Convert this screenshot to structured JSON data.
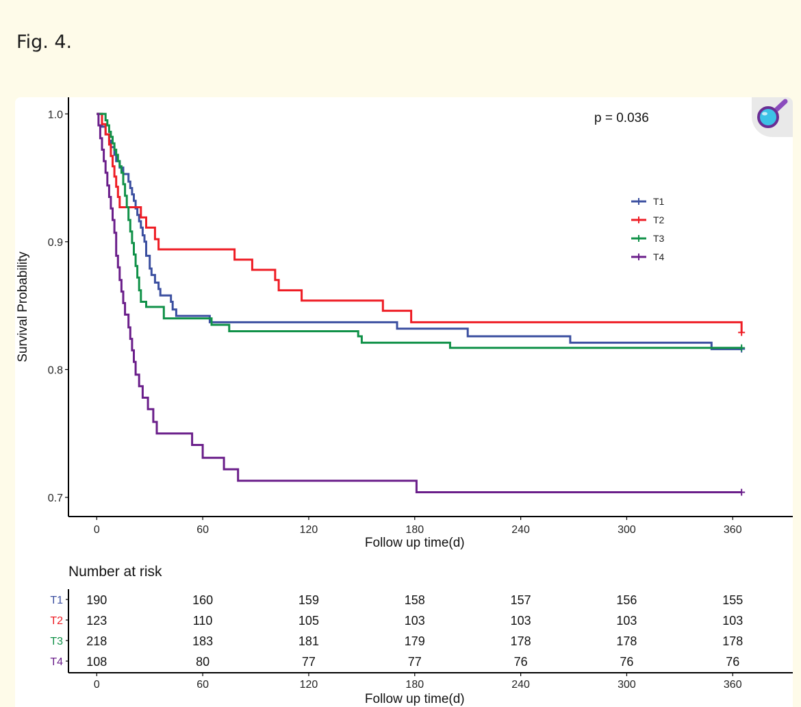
{
  "caption": "Fig. 4.",
  "icons": {
    "zoom": "magnifier-zoom-icon"
  },
  "colors": {
    "T1": "#3b4fa0",
    "T2": "#ee1c24",
    "T3": "#109148",
    "T4": "#6a1e8a"
  },
  "chart_data": {
    "type": "line",
    "subtype": "kaplan-meier step curves",
    "annotation": "p = 0.036",
    "xlabel": "Follow up time(d)",
    "ylabel": "Survival Probability",
    "xlim": [
      -16,
      394
    ],
    "ylim": [
      0.685,
      1.013
    ],
    "xticks": [
      0,
      60,
      120,
      180,
      240,
      300,
      360
    ],
    "yticks": [
      0.7,
      0.8,
      0.9,
      1.0
    ],
    "ytick_labels": [
      "0.7",
      "0.8",
      "0.9",
      "1.0"
    ],
    "grid": false,
    "legend_position": "right",
    "series": [
      {
        "name": "T1",
        "color": "#3b4fa0",
        "points": [
          [
            0,
            1.0
          ],
          [
            3,
            0.99
          ],
          [
            5,
            0.984
          ],
          [
            7,
            0.979
          ],
          [
            8,
            0.974
          ],
          [
            10,
            0.968
          ],
          [
            11,
            0.963
          ],
          [
            13,
            0.958
          ],
          [
            15,
            0.953
          ],
          [
            18,
            0.947
          ],
          [
            19,
            0.942
          ],
          [
            20,
            0.937
          ],
          [
            21,
            0.932
          ],
          [
            22,
            0.926
          ],
          [
            23,
            0.921
          ],
          [
            24,
            0.916
          ],
          [
            25,
            0.911
          ],
          [
            26,
            0.905
          ],
          [
            27,
            0.9
          ],
          [
            28,
            0.889
          ],
          [
            30,
            0.879
          ],
          [
            31,
            0.874
          ],
          [
            33,
            0.868
          ],
          [
            35,
            0.863
          ],
          [
            36,
            0.858
          ],
          [
            42,
            0.853
          ],
          [
            43,
            0.847
          ],
          [
            45,
            0.842
          ],
          [
            64,
            0.837
          ],
          [
            170,
            0.832
          ],
          [
            210,
            0.826
          ],
          [
            268,
            0.821
          ],
          [
            348,
            0.816
          ],
          [
            365,
            0.816
          ]
        ]
      },
      {
        "name": "T2",
        "color": "#ee1c24",
        "points": [
          [
            0,
            1.0
          ],
          [
            3,
            0.992
          ],
          [
            5,
            0.984
          ],
          [
            7,
            0.976
          ],
          [
            8,
            0.967
          ],
          [
            9,
            0.959
          ],
          [
            10,
            0.951
          ],
          [
            11,
            0.943
          ],
          [
            12,
            0.935
          ],
          [
            13,
            0.927
          ],
          [
            25,
            0.919
          ],
          [
            28,
            0.911
          ],
          [
            33,
            0.902
          ],
          [
            35,
            0.894
          ],
          [
            78,
            0.886
          ],
          [
            88,
            0.878
          ],
          [
            101,
            0.87
          ],
          [
            103,
            0.862
          ],
          [
            116,
            0.854
          ],
          [
            162,
            0.846
          ],
          [
            178,
            0.837
          ],
          [
            364,
            0.837
          ],
          [
            365,
            0.829
          ]
        ]
      },
      {
        "name": "T3",
        "color": "#109148",
        "points": [
          [
            0,
            1.0
          ],
          [
            5,
            0.995
          ],
          [
            6,
            0.991
          ],
          [
            7,
            0.986
          ],
          [
            8,
            0.982
          ],
          [
            9,
            0.977
          ],
          [
            10,
            0.972
          ],
          [
            11,
            0.968
          ],
          [
            12,
            0.963
          ],
          [
            13,
            0.959
          ],
          [
            14,
            0.954
          ],
          [
            15,
            0.945
          ],
          [
            16,
            0.936
          ],
          [
            17,
            0.927
          ],
          [
            18,
            0.917
          ],
          [
            19,
            0.908
          ],
          [
            20,
            0.899
          ],
          [
            21,
            0.89
          ],
          [
            22,
            0.881
          ],
          [
            23,
            0.872
          ],
          [
            24,
            0.862
          ],
          [
            25,
            0.853
          ],
          [
            28,
            0.849
          ],
          [
            38,
            0.84
          ],
          [
            65,
            0.835
          ],
          [
            75,
            0.83
          ],
          [
            148,
            0.826
          ],
          [
            150,
            0.821
          ],
          [
            200,
            0.817
          ],
          [
            365,
            0.817
          ]
        ]
      },
      {
        "name": "T4",
        "color": "#6a1e8a",
        "points": [
          [
            0,
            1.0
          ],
          [
            1,
            0.991
          ],
          [
            2,
            0.981
          ],
          [
            3,
            0.972
          ],
          [
            4,
            0.963
          ],
          [
            5,
            0.954
          ],
          [
            6,
            0.944
          ],
          [
            7,
            0.935
          ],
          [
            8,
            0.926
          ],
          [
            9,
            0.917
          ],
          [
            10,
            0.907
          ],
          [
            11,
            0.889
          ],
          [
            12,
            0.88
          ],
          [
            13,
            0.87
          ],
          [
            14,
            0.861
          ],
          [
            15,
            0.852
          ],
          [
            16,
            0.843
          ],
          [
            18,
            0.833
          ],
          [
            19,
            0.824
          ],
          [
            20,
            0.815
          ],
          [
            21,
            0.806
          ],
          [
            22,
            0.796
          ],
          [
            24,
            0.787
          ],
          [
            26,
            0.778
          ],
          [
            29,
            0.769
          ],
          [
            32,
            0.759
          ],
          [
            34,
            0.75
          ],
          [
            54,
            0.741
          ],
          [
            60,
            0.731
          ],
          [
            72,
            0.722
          ],
          [
            80,
            0.713
          ],
          [
            181,
            0.704
          ],
          [
            365,
            0.704
          ]
        ]
      }
    ],
    "risk_table": {
      "title": "Number at risk",
      "xlabel": "Follow up time(d)",
      "times": [
        0,
        60,
        120,
        180,
        240,
        300,
        360
      ],
      "rows": [
        {
          "name": "T1",
          "counts": [
            190,
            160,
            159,
            158,
            157,
            156,
            155
          ]
        },
        {
          "name": "T2",
          "counts": [
            123,
            110,
            105,
            103,
            103,
            103,
            103
          ]
        },
        {
          "name": "T3",
          "counts": [
            218,
            183,
            181,
            179,
            178,
            178,
            178
          ]
        },
        {
          "name": "T4",
          "counts": [
            108,
            80,
            77,
            77,
            76,
            76,
            76
          ]
        }
      ]
    }
  }
}
